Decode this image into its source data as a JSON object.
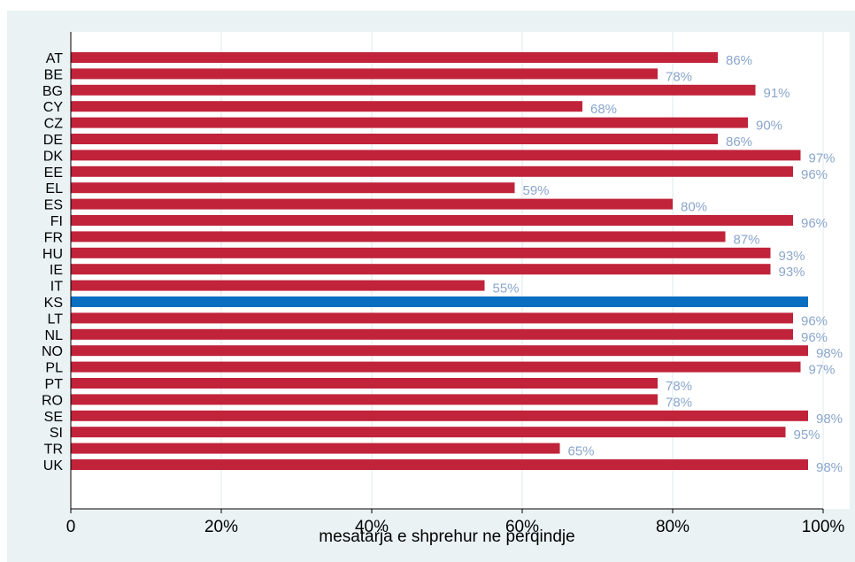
{
  "chart_data": {
    "type": "bar",
    "orientation": "horizontal",
    "categories": [
      "AT",
      "BE",
      "BG",
      "CY",
      "CZ",
      "DE",
      "DK",
      "EE",
      "EL",
      "ES",
      "FI",
      "FR",
      "HU",
      "IE",
      "IT",
      "KS",
      "LT",
      "NL",
      "NO",
      "PL",
      "PT",
      "RO",
      "SE",
      "SI",
      "TR",
      "UK"
    ],
    "values": [
      86,
      78,
      91,
      68,
      90,
      86,
      97,
      96,
      59,
      80,
      96,
      87,
      93,
      93,
      55,
      98,
      96,
      96,
      98,
      97,
      78,
      78,
      98,
      95,
      65,
      98
    ],
    "data_labels": [
      "86%",
      "78%",
      "91%",
      "68%",
      "90%",
      "86%",
      "97%",
      "96%",
      "59%",
      "80%",
      "96%",
      "87%",
      "93%",
      "93%",
      "55%",
      "",
      "96%",
      "96%",
      "98%",
      "97%",
      "78%",
      "78%",
      "98%",
      "95%",
      "65%",
      "98%"
    ],
    "highlight_category": "KS",
    "xlabel": "mesatarja e shprehur ne perqindje",
    "xlim": [
      0,
      100
    ],
    "xticks": [
      0,
      20,
      40,
      60,
      80,
      100
    ],
    "xtick_labels": [
      "0",
      "20%",
      "40%",
      "60%",
      "80%",
      "100%"
    ],
    "grid": true,
    "colors": {
      "bar": "#c0233a",
      "highlight_bar": "#0a6ec1",
      "data_label": "#8aa6cc",
      "plot_background": "#ffffff",
      "frame_background": "#eaf2f3",
      "grid": "#e9f1f2"
    }
  }
}
